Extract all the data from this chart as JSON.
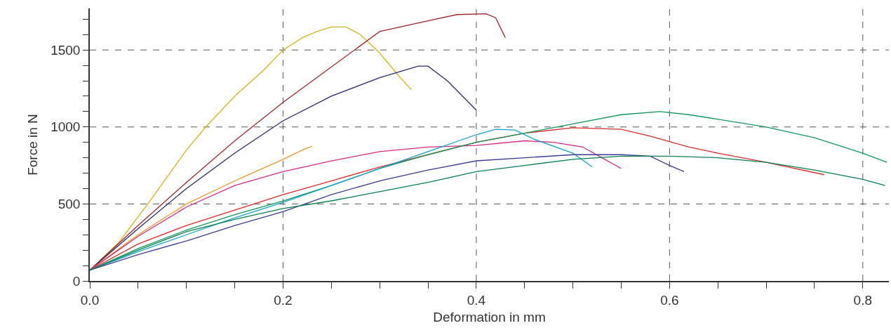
{
  "chart_data": {
    "type": "line",
    "xlabel": "Deformation in mm",
    "ylabel": "Force in N",
    "xlim": [
      0,
      0.827
    ],
    "ylim": [
      0,
      1770
    ],
    "xticks": [
      {
        "value": 0,
        "label": "0.0"
      },
      {
        "value": 0.05,
        "label": null
      },
      {
        "value": 0.1,
        "label": null
      },
      {
        "value": 0.15,
        "label": null
      },
      0.2,
      {
        "value": 0.25,
        "label": null
      },
      {
        "value": 0.3,
        "label": null
      },
      {
        "value": 0.35,
        "label": null
      },
      0.4,
      {
        "value": 0.45,
        "label": null
      },
      {
        "value": 0.5,
        "label": null
      },
      {
        "value": 0.55,
        "label": null
      },
      0.6,
      {
        "value": 0.65,
        "label": null
      },
      {
        "value": 0.7,
        "label": null
      },
      {
        "value": 0.75,
        "label": null
      },
      0.8
    ],
    "yticks": [
      0,
      {
        "value": 100,
        "label": null
      },
      {
        "value": 200,
        "label": null
      },
      {
        "value": 300,
        "label": null
      },
      {
        "value": 400,
        "label": null
      },
      500,
      {
        "value": 600,
        "label": null
      },
      {
        "value": 700,
        "label": null
      },
      {
        "value": 800,
        "label": null
      },
      {
        "value": 900,
        "label": null
      },
      1000,
      {
        "value": 1100,
        "label": null
      },
      {
        "value": 1200,
        "label": null
      },
      {
        "value": 1300,
        "label": null
      },
      {
        "value": 1400,
        "label": null
      },
      1500,
      {
        "value": 1600,
        "label": null
      },
      {
        "value": 1700,
        "label": null
      }
    ],
    "grid": true,
    "line_style": "solid",
    "legend": false,
    "series": [
      {
        "color": "#d4b41e",
        "x": [
          0,
          0.03,
          0.06,
          0.1,
          0.12,
          0.15,
          0.18,
          0.2,
          0.22,
          0.235,
          0.25,
          0.265,
          0.28,
          0.3,
          0.32,
          0.333
        ],
        "values": [
          70,
          250,
          500,
          850,
          1000,
          1200,
          1370,
          1500,
          1580,
          1620,
          1650,
          1650,
          1600,
          1480,
          1330,
          1240
        ]
      },
      {
        "color": "#a0282a",
        "x": [
          0,
          0.05,
          0.1,
          0.15,
          0.2,
          0.25,
          0.3,
          0.35,
          0.38,
          0.41,
          0.42,
          0.43
        ],
        "values": [
          70,
          360,
          640,
          910,
          1160,
          1390,
          1620,
          1690,
          1730,
          1735,
          1710,
          1580
        ]
      },
      {
        "color": "#2a2a6e",
        "x": [
          0,
          0.05,
          0.1,
          0.15,
          0.2,
          0.25,
          0.3,
          0.34,
          0.35,
          0.37,
          0.4
        ],
        "values": [
          70,
          340,
          600,
          830,
          1040,
          1200,
          1320,
          1395,
          1395,
          1300,
          1110
        ]
      },
      {
        "color": "#f0962a",
        "x": [
          0,
          0.05,
          0.1,
          0.15,
          0.2,
          0.22,
          0.23
        ],
        "values": [
          70,
          300,
          500,
          650,
          790,
          850,
          875
        ]
      },
      {
        "color": "#d42a82",
        "x": [
          0,
          0.05,
          0.1,
          0.15,
          0.2,
          0.25,
          0.3,
          0.35,
          0.4,
          0.45,
          0.48,
          0.51,
          0.53,
          0.55
        ],
        "values": [
          70,
          290,
          480,
          620,
          710,
          780,
          840,
          870,
          880,
          910,
          900,
          870,
          800,
          730
        ]
      },
      {
        "color": "#dc2a2a",
        "x": [
          0,
          0.05,
          0.1,
          0.15,
          0.2,
          0.25,
          0.3,
          0.35,
          0.4,
          0.45,
          0.5,
          0.55,
          0.58,
          0.62,
          0.65,
          0.7,
          0.76
        ],
        "values": [
          70,
          240,
          360,
          460,
          560,
          650,
          740,
          820,
          900,
          960,
          995,
          985,
          940,
          870,
          830,
          770,
          690
        ]
      },
      {
        "color": "#12965a",
        "x": [
          0,
          0.05,
          0.1,
          0.15,
          0.2,
          0.25,
          0.3,
          0.35,
          0.4,
          0.45,
          0.5,
          0.55,
          0.59,
          0.62,
          0.7,
          0.75,
          0.8,
          0.825
        ],
        "values": [
          70,
          210,
          330,
          430,
          520,
          620,
          730,
          820,
          900,
          960,
          1020,
          1080,
          1100,
          1080,
          1000,
          930,
          830,
          770
        ]
      },
      {
        "color": "#14a0d2",
        "x": [
          0,
          0.05,
          0.1,
          0.15,
          0.2,
          0.25,
          0.3,
          0.35,
          0.4,
          0.42,
          0.44,
          0.46,
          0.5,
          0.52
        ],
        "values": [
          70,
          190,
          300,
          410,
          510,
          620,
          730,
          840,
          950,
          985,
          980,
          920,
          830,
          740
        ]
      },
      {
        "color": "#3c3c96",
        "x": [
          0,
          0.05,
          0.1,
          0.15,
          0.2,
          0.25,
          0.3,
          0.35,
          0.4,
          0.45,
          0.5,
          0.55,
          0.58,
          0.6,
          0.615
        ],
        "values": [
          70,
          170,
          260,
          360,
          450,
          560,
          650,
          720,
          780,
          800,
          820,
          820,
          810,
          750,
          710
        ]
      },
      {
        "color": "#0a8050",
        "x": [
          0,
          0.05,
          0.1,
          0.15,
          0.2,
          0.25,
          0.3,
          0.35,
          0.4,
          0.45,
          0.5,
          0.55,
          0.6,
          0.65,
          0.7,
          0.75,
          0.8,
          0.823
        ],
        "values": [
          70,
          200,
          320,
          400,
          470,
          520,
          580,
          640,
          710,
          750,
          790,
          810,
          810,
          800,
          770,
          720,
          660,
          620
        ]
      }
    ]
  }
}
